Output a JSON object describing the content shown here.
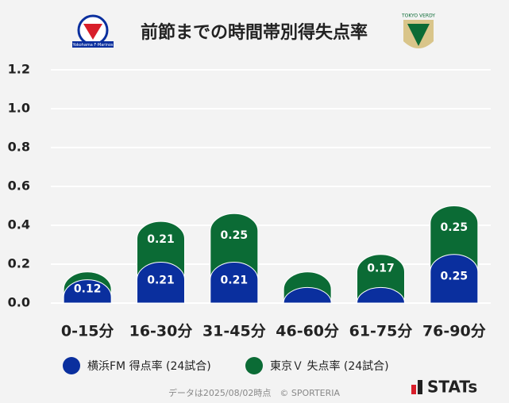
{
  "chart_data": {
    "type": "stacked_bar",
    "title": "前節までの時間帯別得失点率",
    "logo_left_text": "Yokohama F·Marinos",
    "logo_right_text": "TOKYO VERDY",
    "categories": [
      "0-15分",
      "16-30分",
      "31-45分",
      "46-60分",
      "61-75分",
      "76-90分"
    ],
    "series": [
      {
        "name": "横浜FM 得点率 (24試合)",
        "color": "#0a2f9e",
        "values": [
          0.12,
          0.21,
          0.21,
          0.08,
          0.08,
          0.25
        ]
      },
      {
        "name": "東京Ｖ 失点率 (24試合)",
        "color": "#0b6b35",
        "values": [
          0.04,
          0.21,
          0.25,
          0.08,
          0.17,
          0.25
        ]
      }
    ],
    "ylim": [
      0,
      1.2
    ],
    "yticks": [
      {
        "value": 0,
        "label": "0.0"
      },
      0.2,
      0.4,
      0.6,
      0.8,
      {
        "value": 1,
        "label": "1.0"
      },
      1.2
    ],
    "grid": true,
    "footer": "データは2025/08/02時点　© SPORTERIA",
    "brand": "STATs"
  }
}
